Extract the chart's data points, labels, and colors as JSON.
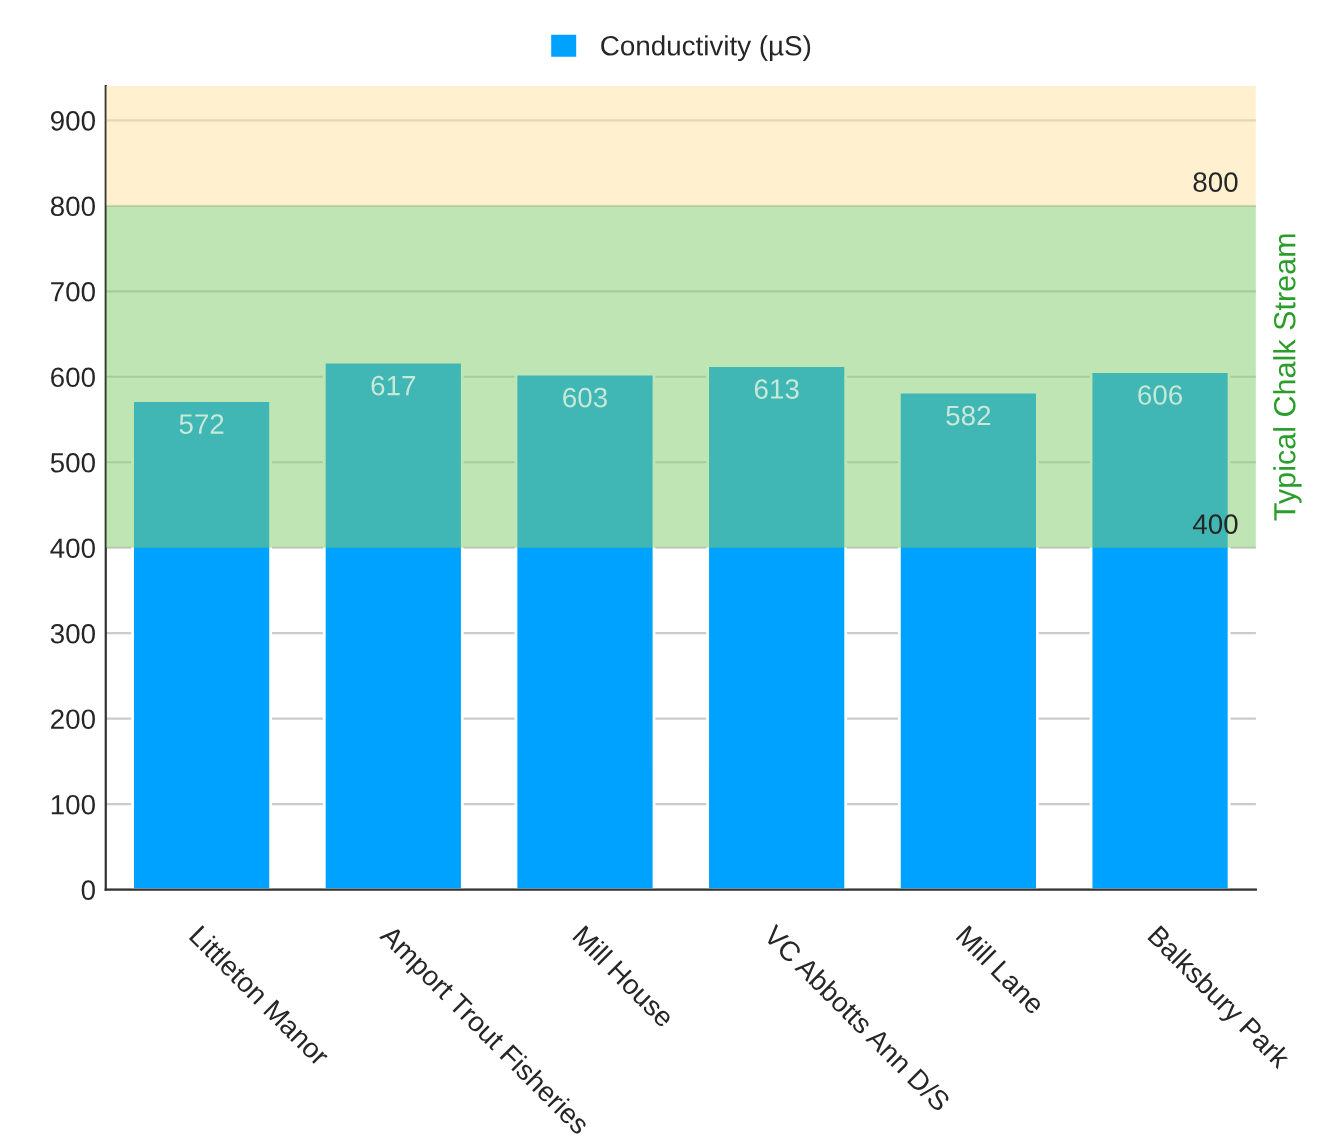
{
  "chart_data": {
    "type": "bar",
    "categories": [
      "Littleton Manor",
      "Amport Trout Fisheries",
      "Mill House",
      "VC Abbotts Ann D/S",
      "Mill Lane",
      "Balksbury Park"
    ],
    "series": [
      {
        "name": "Conductivity (µS)",
        "color": "#00a2ff",
        "values": [
          572,
          617,
          603,
          613,
          582,
          606
        ]
      }
    ],
    "data_labels": true,
    "ylim": [
      0,
      940
    ],
    "yticks": [
      0,
      100,
      200,
      300,
      400,
      500,
      600,
      700,
      800,
      900
    ],
    "grid": "y",
    "legend": "top",
    "bands": [
      {
        "axis": "y",
        "from": 400,
        "to": 800,
        "label": "Typical Chalk Stream",
        "color": "#7fcc6a"
      },
      {
        "axis": "y",
        "from": 800,
        "to": 940,
        "color": "#ffe3a0"
      }
    ],
    "annotations": [
      {
        "text": "800",
        "y": 800
      },
      {
        "text": "400",
        "y": 400
      }
    ]
  }
}
